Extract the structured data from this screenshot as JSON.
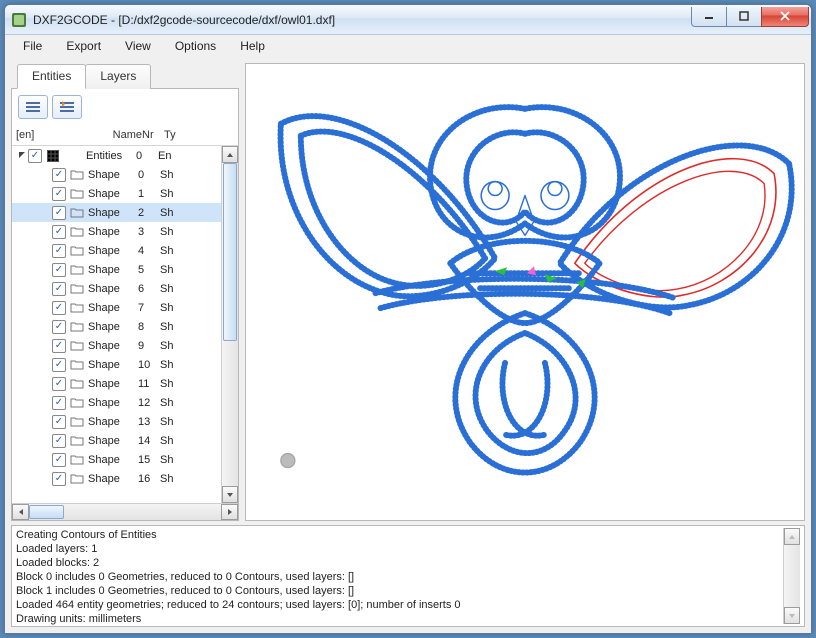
{
  "window": {
    "title": "DXF2GCODE - [D:/dxf2gcode-sourcecode/dxf/owl01.dxf]"
  },
  "menu": {
    "items": [
      "File",
      "Export",
      "View",
      "Options",
      "Help"
    ]
  },
  "tabs": {
    "items": [
      "Entities",
      "Layers"
    ],
    "active_index": 0
  },
  "tree": {
    "header": {
      "c0": "[en]",
      "c1": "Name",
      "c2": "Nr",
      "c3": "Ty"
    },
    "root": {
      "name": "Entities",
      "nr": "0",
      "ty": "En"
    },
    "selected_index": 2,
    "rows": [
      {
        "name": "Shape",
        "nr": "0",
        "ty": "Sh"
      },
      {
        "name": "Shape",
        "nr": "1",
        "ty": "Sh"
      },
      {
        "name": "Shape",
        "nr": "2",
        "ty": "Sh"
      },
      {
        "name": "Shape",
        "nr": "3",
        "ty": "Sh"
      },
      {
        "name": "Shape",
        "nr": "4",
        "ty": "Sh"
      },
      {
        "name": "Shape",
        "nr": "5",
        "ty": "Sh"
      },
      {
        "name": "Shape",
        "nr": "6",
        "ty": "Sh"
      },
      {
        "name": "Shape",
        "nr": "7",
        "ty": "Sh"
      },
      {
        "name": "Shape",
        "nr": "8",
        "ty": "Sh"
      },
      {
        "name": "Shape",
        "nr": "9",
        "ty": "Sh"
      },
      {
        "name": "Shape",
        "nr": "10",
        "ty": "Sh"
      },
      {
        "name": "Shape",
        "nr": "11",
        "ty": "Sh"
      },
      {
        "name": "Shape",
        "nr": "12",
        "ty": "Sh"
      },
      {
        "name": "Shape",
        "nr": "13",
        "ty": "Sh"
      },
      {
        "name": "Shape",
        "nr": "14",
        "ty": "Sh"
      },
      {
        "name": "Shape",
        "nr": "15",
        "ty": "Sh"
      },
      {
        "name": "Shape",
        "nr": "16",
        "ty": "Sh"
      }
    ]
  },
  "canvas": {
    "background": "#ffffff",
    "stroke_blue": "#2a6fd6",
    "stroke_red": "#e02a2a",
    "marker_green": "#27c23a",
    "marker_pink": "#ff5fcf",
    "dot_fill": "#bcbcbc"
  },
  "console": {
    "lines": [
      "Creating Contours of Entities",
      "Loaded layers: 1",
      "Loaded blocks: 2",
      "Block 0 includes 0 Geometries, reduced to 0 Contours, used layers: []",
      "Block 1 includes 0 Geometries, reduced to 0 Contours, used layers: []",
      "Loaded 464 entity geometries; reduced to 24 contours; used layers: [0]; number of inserts 0",
      "Drawing units: millimeters"
    ]
  }
}
